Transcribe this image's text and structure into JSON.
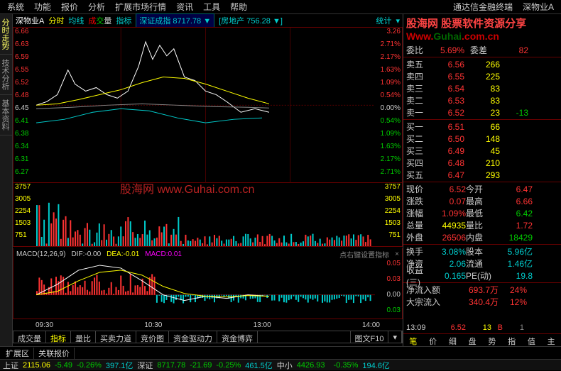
{
  "menu": {
    "items": [
      "系统",
      "功能",
      "报价",
      "分析",
      "扩展市场行情",
      "资讯",
      "工具",
      "帮助"
    ],
    "right1": "通达信金融终端",
    "right2": "深物业A"
  },
  "leftTabs": [
    "分时走势",
    "技术分析",
    "基本资料"
  ],
  "chartHeader": {
    "name": "深物业A",
    "tabs": [
      "分时",
      "均线",
      "成交量",
      "指标"
    ],
    "idx1_label": "深证成指",
    "idx1_val": "8717.78",
    "idx1_arrow": "▼",
    "idx2_label": "房地产",
    "idx2_val": "756.28",
    "idx2_arrow": "▼",
    "stat": "统计"
  },
  "priceAxis": {
    "left": [
      "6.66",
      "6.63",
      "6.59",
      "6.55",
      "6.52",
      "6.48",
      "6.45",
      "6.41",
      "6.38",
      "6.34",
      "6.31",
      "6.27"
    ],
    "right": [
      "3.26",
      "2.71%",
      "2.17%",
      "1.63%",
      "1.09%",
      "0.54%",
      "0.00%",
      "0.54%",
      "1.09%",
      "1.63%",
      "2.17%",
      "2.71%"
    ],
    "leftColors": [
      "r",
      "r",
      "r",
      "r",
      "r",
      "r",
      "w",
      "g",
      "g",
      "g",
      "g",
      "g"
    ],
    "rightColors": [
      "r",
      "r",
      "r",
      "r",
      "r",
      "r",
      "w",
      "g",
      "g",
      "g",
      "g",
      "g"
    ]
  },
  "volAxis": {
    "left": [
      "3757",
      "3005",
      "2254",
      "1503",
      "751"
    ],
    "right": [
      "3757",
      "3005",
      "2254",
      "1503",
      "751"
    ]
  },
  "macd": {
    "label": "MACD(12,26,9)",
    "dif_l": "DIF:",
    "dif_v": "-0.00",
    "dea_l": "DEA:",
    "dea_v": "-0.01",
    "macd_l": "MACD:",
    "macd_v": "0.01",
    "hint": "点右键设置指标",
    "axis": [
      "0.05",
      "0.03",
      "0.00",
      "0.03"
    ]
  },
  "timeAxis": [
    "09:30",
    "10:30",
    "13:00",
    "14:00"
  ],
  "watermark": "股海网   www.Guhai.com.cn",
  "bottomTabs": [
    "成交量",
    "指标",
    "量比",
    "买卖力道",
    "竞价图",
    "资金驱动力",
    "资金博弈"
  ],
  "bottomRight": "图文F10",
  "logo": {
    "l1": "股海网 股票软件资源分享",
    "l2a": "Www.",
    "l2b": "Guhai",
    ".": "com.cn"
  },
  "topRow": {
    "l1": "委比",
    "v1": "5.69%",
    "l2": "委差",
    "v2": "82"
  },
  "asks": [
    {
      "lbl": "卖五",
      "p": "6.56",
      "q": "266"
    },
    {
      "lbl": "卖四",
      "p": "6.55",
      "q": "225"
    },
    {
      "lbl": "卖三",
      "p": "6.54",
      "q": "83"
    },
    {
      "lbl": "卖二",
      "p": "6.53",
      "q": "83"
    },
    {
      "lbl": "卖一",
      "p": "6.52",
      "q": "23",
      "ex": "-13"
    }
  ],
  "bids": [
    {
      "lbl": "买一",
      "p": "6.51",
      "q": "66"
    },
    {
      "lbl": "买二",
      "p": "6.50",
      "q": "148"
    },
    {
      "lbl": "买三",
      "p": "6.49",
      "q": "45"
    },
    {
      "lbl": "买四",
      "p": "6.48",
      "q": "210"
    },
    {
      "lbl": "买五",
      "p": "6.47",
      "q": "293"
    }
  ],
  "stats": [
    {
      "c1": "现价",
      "c2": "6.52",
      "c2c": "r",
      "c3": "今开",
      "c4": "6.47",
      "c4c": "r"
    },
    {
      "c1": "涨跌",
      "c2": "0.07",
      "c2c": "r",
      "c3": "最高",
      "c4": "6.66",
      "c4c": "r"
    },
    {
      "c1": "涨幅",
      "c2": "1.09%",
      "c2c": "r",
      "c3": "最低",
      "c4": "6.42",
      "c4c": "g"
    },
    {
      "c1": "总量",
      "c2": "44935",
      "c2c": "y",
      "c3": "量比",
      "c4": "1.72",
      "c4c": "r"
    },
    {
      "c1": "外盘",
      "c2": "26506",
      "c2c": "r",
      "c3": "内盘",
      "c4": "18429",
      "c4c": "g"
    }
  ],
  "stats2": [
    {
      "c1": "换手",
      "c2": "3.08%",
      "c2c": "c",
      "c3": "股本",
      "c4": "5.96亿",
      "c4c": "c"
    },
    {
      "c1": "净资",
      "c2": "2.06",
      "c2c": "c",
      "c3": "流通",
      "c4": "1.46亿",
      "c4c": "c"
    },
    {
      "c1": "收益(三)",
      "c2": "0.165",
      "c2c": "c",
      "c3": "PE(动)",
      "c4": "19.8",
      "c4c": "c"
    }
  ],
  "flow": [
    {
      "lbl": "净流入额",
      "v": "693.7万",
      "p": "24%"
    },
    {
      "lbl": "大宗流入",
      "v": "340.4万",
      "p": "12%"
    }
  ],
  "tick": {
    "t": "13:09",
    "p": "6.52",
    "q": "13",
    "f": "B",
    "n": "1"
  },
  "rpTabs": [
    "笔",
    "价",
    "细",
    "盘",
    "势",
    "指",
    "值",
    "主"
  ],
  "footerBar": [
    "扩展区",
    "关联报价"
  ],
  "status": {
    "items": [
      {
        "l": "上证",
        "v": "2115.06",
        "c": "r",
        "d": "-5.49",
        "p": "-0.26%",
        "a": "397.1亿"
      },
      {
        "l": "深证",
        "v": "8717.78",
        "c": "g",
        "d": "-21.69",
        "p": "-0.25%",
        "a": "461.5亿"
      },
      {
        "l": "中小",
        "v": "4426.93",
        "c": "g",
        "d": "",
        "p": "-0.35%",
        "a": "194.6亿"
      }
    ]
  }
}
